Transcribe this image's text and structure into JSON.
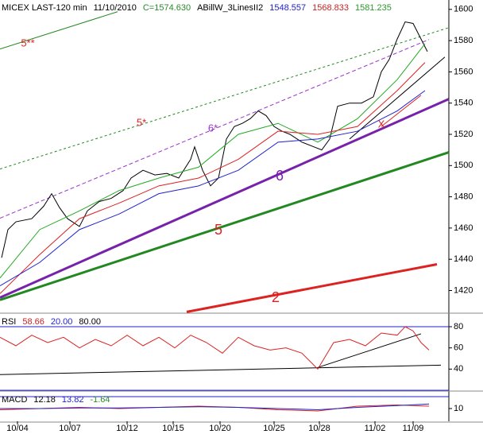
{
  "chart_data": [
    {
      "type": "line",
      "header": [
        {
          "text": "MICEX LAST-120 min",
          "color": "#000000"
        },
        {
          "text": "11/10/2010",
          "color": "#000000"
        },
        {
          "text": "C=1574.630",
          "color": "#2a8a2a"
        },
        {
          "text": "ABillW_3LinesII2",
          "color": "#000000"
        },
        {
          "text": "1548.557",
          "color": "#2222cc"
        },
        {
          "text": "1568.833",
          "color": "#cc2222"
        },
        {
          "text": "1581.235",
          "color": "#2a9a2a"
        }
      ],
      "xlim": [
        0,
        113
      ],
      "xticks": [
        {
          "value": 4.4,
          "label": "10/04"
        },
        {
          "value": 17.6,
          "label": "10/07"
        },
        {
          "value": 32,
          "label": "10/12"
        },
        {
          "value": 43.6,
          "label": "10/15"
        },
        {
          "value": 55.4,
          "label": "10/20"
        },
        {
          "value": 69,
          "label": "10/25"
        },
        {
          "value": 80.4,
          "label": "10/28"
        },
        {
          "value": 94.4,
          "label": "11/02"
        },
        {
          "value": 104,
          "label": "11/09"
        }
      ],
      "ylim": [
        1406,
        1606
      ],
      "yticks": [
        1420,
        1440,
        1460,
        1480,
        1500,
        1520,
        1540,
        1560,
        1580,
        1600
      ],
      "series": [
        {
          "color": "#000000",
          "x": [
            0.4,
            2,
            4,
            8,
            11,
            13,
            15,
            17,
            20,
            22,
            25,
            28,
            31,
            33,
            36,
            39,
            42,
            45,
            48,
            49,
            51,
            53,
            55,
            57,
            59,
            61,
            63,
            65,
            67,
            69,
            71,
            73,
            76,
            79,
            81,
            83,
            85,
            88,
            91,
            94,
            96,
            98,
            100,
            102,
            104,
            106,
            107.6
          ],
          "values": [
            1441,
            1459,
            1464,
            1466,
            1474,
            1482,
            1473,
            1466,
            1461,
            1471,
            1477,
            1479,
            1484,
            1492,
            1497,
            1494,
            1495,
            1492,
            1504,
            1512,
            1497,
            1487,
            1492,
            1517,
            1525,
            1527,
            1530,
            1535,
            1532,
            1525,
            1522,
            1520,
            1515,
            1512,
            1510,
            1517,
            1538,
            1540,
            1540,
            1544,
            1560,
            1568,
            1581,
            1592,
            1591,
            1581,
            1573
          ]
        },
        {
          "color": "#22aa22",
          "x": [
            0,
            10,
            20,
            30,
            40,
            50,
            60,
            70,
            80,
            90,
            100,
            107
          ],
          "values": [
            1428,
            1459,
            1471,
            1484,
            1492,
            1499,
            1520,
            1527,
            1515,
            1530,
            1555,
            1578
          ]
        },
        {
          "color": "#dd2222",
          "x": [
            0,
            10,
            20,
            30,
            40,
            50,
            60,
            70,
            80,
            90,
            100,
            107
          ],
          "values": [
            1418,
            1443,
            1466,
            1476,
            1487,
            1492,
            1504,
            1522,
            1520,
            1525,
            1548,
            1566
          ]
        },
        {
          "color": "#2222cc",
          "x": [
            0,
            10,
            20,
            30,
            40,
            50,
            60,
            70,
            80,
            90,
            100,
            107
          ],
          "values": [
            1423,
            1438,
            1459,
            1469,
            1482,
            1487,
            1497,
            1515,
            1517,
            1522,
            1535,
            1548
          ]
        }
      ],
      "lines": [
        {
          "label": "5**",
          "color": "#228822",
          "label_color": "#dd2222",
          "style": "thin",
          "x": [
            0,
            29.6
          ],
          "y": [
            1574.6,
            1598.5
          ]
        },
        {
          "label": "5*",
          "color": "#228822",
          "label_color": "#dd2222",
          "style": "dotted",
          "x": [
            0,
            113
          ],
          "y": [
            1497.8,
            1588.3
          ]
        },
        {
          "label": "6*",
          "color": "#9933cc",
          "label_color": "#9933cc",
          "style": "dashed",
          "x": [
            0,
            108
          ],
          "y": [
            1466.3,
            1580.7
          ]
        },
        {
          "label": "6",
          "color": "#7722aa",
          "label_color": "#7722aa",
          "style": "thick",
          "x": [
            0,
            113
          ],
          "y": [
            1415.5,
            1542.6
          ]
        },
        {
          "label": "5",
          "color": "#228822",
          "label_color": "#dd2222",
          "style": "thick",
          "x": [
            0,
            113
          ],
          "y": [
            1414,
            1508.5
          ]
        },
        {
          "label": "2",
          "color": "#dd2222",
          "label_color": "#dd2222",
          "style": "thick",
          "x": [
            47,
            110
          ],
          "y": [
            1406.3,
            1436.8
          ]
        },
        {
          "label": "X",
          "color": "#dd2222",
          "label_color": "#dd2222",
          "style": "thin",
          "x": [
            96,
            106
          ],
          "y": [
            1525,
            1545
          ]
        },
        {
          "color": "#000000",
          "style": "thin",
          "x": [
            88,
            112
          ],
          "y": [
            1517,
            1569.5
          ]
        }
      ]
    },
    {
      "type": "line",
      "header": [
        {
          "text": "RSI",
          "color": "#000000"
        },
        {
          "text": "58.66",
          "color": "#cc2222"
        },
        {
          "text": "20.00",
          "color": "#2222cc"
        },
        {
          "text": "80.00",
          "color": "#000000"
        }
      ],
      "ylim": [
        20,
        92
      ],
      "yticks": [
        40,
        60,
        80
      ],
      "levels": [
        20,
        80
      ],
      "level_color": "#2222cc",
      "series": [
        {
          "color": "#dd2222",
          "x": [
            0,
            4,
            8,
            12,
            16,
            20,
            24,
            28,
            32,
            36,
            40,
            44,
            48,
            52,
            56,
            60,
            64,
            68,
            72,
            76,
            80,
            84,
            88,
            92,
            96,
            100,
            102,
            104,
            106,
            108
          ],
          "values": [
            70,
            62,
            72,
            65,
            70,
            60,
            68,
            62,
            72,
            62,
            70,
            60,
            72,
            65,
            55,
            70,
            62,
            58,
            60,
            55,
            40,
            65,
            68,
            62,
            74,
            72,
            80,
            76,
            65,
            58
          ]
        }
      ],
      "lines": [
        {
          "color": "#000000",
          "style": "thin",
          "x": [
            0,
            111
          ],
          "y": [
            34.8,
            43.7
          ]
        },
        {
          "color": "#000000",
          "style": "thin",
          "x": [
            80,
            106
          ],
          "y": [
            41.5,
            73.3
          ]
        }
      ]
    },
    {
      "type": "line",
      "header": [
        {
          "text": "MACD",
          "color": "#000000"
        },
        {
          "text": "12.18",
          "color": "#000000"
        },
        {
          "text": "13.82",
          "color": "#2222cc"
        },
        {
          "text": "-1.64",
          "color": "#2a8a2a"
        }
      ],
      "ylim": [
        -0.7,
        24
      ],
      "yticks": [
        10
      ],
      "levels": [
        20
      ],
      "level_color": "#2222cc",
      "series": [
        {
          "color": "#dd2222",
          "x": [
            0,
            10,
            20,
            30,
            40,
            50,
            60,
            70,
            80,
            90,
            100,
            108
          ],
          "values": [
            9,
            10,
            11,
            10,
            11,
            12,
            11,
            9,
            8,
            12,
            13,
            12
          ]
        },
        {
          "color": "#2222cc",
          "x": [
            0,
            10,
            20,
            30,
            40,
            50,
            60,
            70,
            80,
            90,
            100,
            108
          ],
          "values": [
            10,
            10,
            10.5,
            10.5,
            11,
            11.5,
            11,
            10,
            9,
            11,
            12.5,
            13.8
          ]
        }
      ]
    }
  ]
}
